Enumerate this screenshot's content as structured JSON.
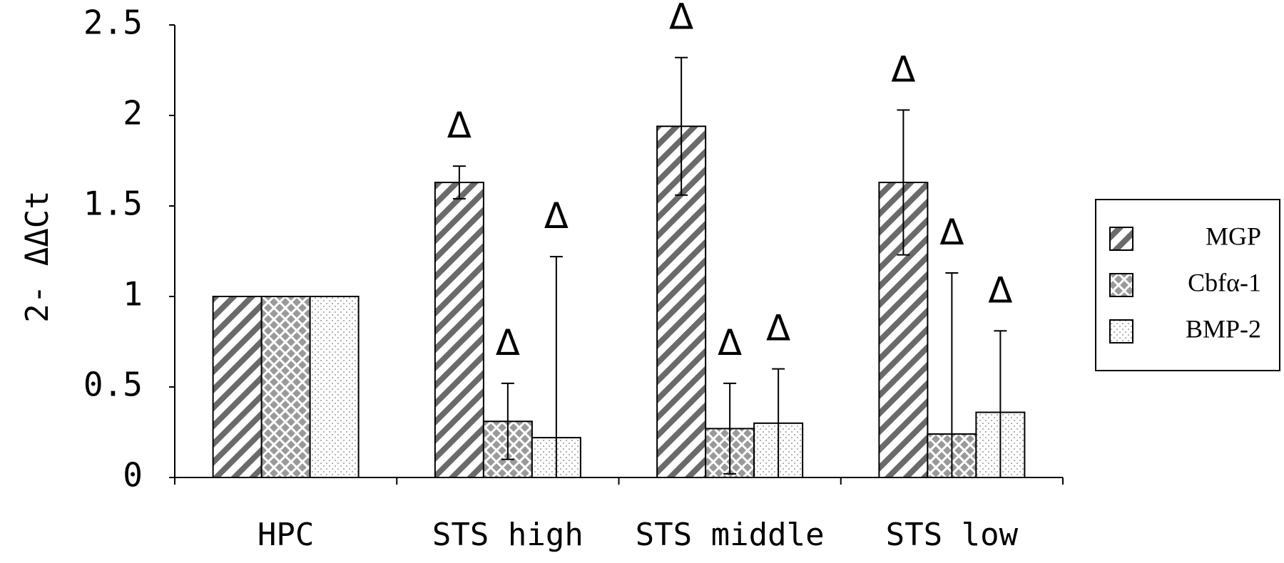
{
  "chart_data": {
    "type": "bar",
    "categories": [
      "HPC",
      "STS high",
      "STS middle",
      "STS low"
    ],
    "series": [
      {
        "name": "MGP",
        "values": [
          1.0,
          1.63,
          1.94,
          1.63
        ],
        "errors": [
          0,
          0.09,
          0.38,
          0.4
        ],
        "sig": [
          false,
          true,
          true,
          true
        ]
      },
      {
        "name": "Cbfα-1",
        "values": [
          1.0,
          0.31,
          0.27,
          0.24
        ],
        "errors": [
          0,
          0.21,
          0.25,
          0.89
        ],
        "sig": [
          false,
          true,
          true,
          true
        ]
      },
      {
        "name": "BMP-2",
        "values": [
          1.0,
          0.22,
          0.3,
          0.36
        ],
        "errors": [
          0,
          1.0,
          0.3,
          0.45
        ],
        "sig": [
          false,
          true,
          true,
          true
        ]
      }
    ],
    "ylabel": "2- ΔΔCt",
    "ylim": [
      0,
      2.5
    ],
    "yticks": [
      "0",
      "0.5",
      "1",
      "1.5",
      "2",
      "2.5"
    ],
    "significance_marker": "Δ",
    "legend_position": "right",
    "grid": false
  }
}
